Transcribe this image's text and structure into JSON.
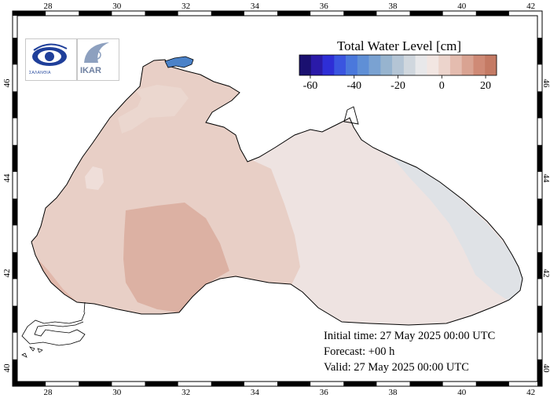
{
  "legend": {
    "title": "Total Water Level [cm]",
    "ticks": [
      "-60",
      "-40",
      "-20",
      "0",
      "20"
    ],
    "colors": [
      "#1a1070",
      "#2a1aa8",
      "#2e2ed6",
      "#3a55e0",
      "#4a78dc",
      "#5f8fd6",
      "#7aa2d2",
      "#97b4cf",
      "#b4c5d5",
      "#d0d7de",
      "#e8e8ea",
      "#f2e6e2",
      "#ecd4cc",
      "#e4bcaf",
      "#d9a392",
      "#cf8a76",
      "#c47a64"
    ]
  },
  "axes": {
    "x_ticks": [
      "28",
      "30",
      "32",
      "34",
      "36",
      "38",
      "40",
      "42"
    ],
    "y_ticks": [
      "40",
      "42",
      "44",
      "46"
    ]
  },
  "info": {
    "initial_time": "Initial time: 27 May 2025 00:00 UTC",
    "forecast": "Forecast: +00 h",
    "valid": "Valid: 27 May 2025 00:00 UTC"
  },
  "logos": {
    "left_text": "ΣΑΛΑΝΘΙΑ",
    "right_text": "IKAR"
  },
  "field_colors": {
    "west": "#e8cfc6",
    "central_high": "#dcb1a3",
    "east": "#eee3e1",
    "east_coast": "#dfe2e6",
    "sea_of_azov": "#4b82c8"
  }
}
